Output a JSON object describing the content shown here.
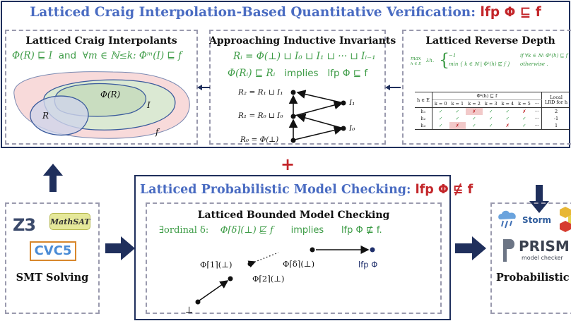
{
  "top_title": {
    "text": "Latticed Craig Interpolation-Based Quantitative Verification:",
    "expr": "lfp Φ ⊑ f"
  },
  "panel_craig": {
    "title": "Latticed Craig Interpolants",
    "formula_left": "Φ(R) ⊑ I",
    "formula_and": "and",
    "formula_right": "∀m ∈ ℕ≤k: Φᵐ(I) ⊑ f",
    "labels": {
      "phi_r": "Φ(R)",
      "i": "I",
      "r": "R",
      "f": "f"
    },
    "colors": {
      "outer": "#f8dada",
      "middle": "#dbe9d3",
      "inner": "#cfd5ea"
    }
  },
  "panel_invariants": {
    "title": "Approaching Inductive Invariants",
    "formula1": "Rᵢ = Φ(⊥) ⊔ I₀ ⊔ I₁ ⊔ ··· ⊔ Iᵢ₋₁",
    "formula2_left": "Φ(Rᵢ) ⊑ Rᵢ",
    "formula2_mid": "implies",
    "formula2_right": "lfp Φ ⊑ f",
    "nodes": {
      "r2": "R₂ = R₁ ⊔ I₁",
      "r1": "R₁ = R₀ ⊔ I₀",
      "r0": "R₀ = Φ(⊥)",
      "i1": "I₁",
      "i0": "I₀"
    }
  },
  "panel_depth": {
    "title": "Latticed Reverse Depth",
    "max_label": "max",
    "max_sub": "h ∈ E",
    "lambda": "λh.",
    "case1": "−1",
    "case1_cond": "if ∀k ∈ ℕ: Φᵏ(h) ⊑ f",
    "case2": "min { k ∈ ℕ | Φᵏ(h) ⋢ f }",
    "case2_cond": "otherwise .",
    "table": {
      "col_h": "h ∈ E",
      "col_phi": "Φᵏ(h) ⊑ f",
      "col_lrd": "Local LRD for h",
      "k_headers": [
        "k = 0",
        "k = 1",
        "k = 2",
        "k = 3",
        "k = 4",
        "k = 5",
        "···"
      ],
      "rows": [
        {
          "h": "h₁",
          "cells": [
            "✓",
            "✓",
            "✗",
            "✓",
            "✓",
            "✗",
            "···"
          ],
          "lrd": "2"
        },
        {
          "h": "h₂",
          "cells": [
            "✓",
            "✓",
            "✓",
            "✓",
            "✓",
            "✓",
            "···"
          ],
          "lrd": "-1"
        },
        {
          "h": "h₃",
          "cells": [
            "✓",
            "✗",
            "✓",
            "✓",
            "✗",
            "✓",
            "···"
          ],
          "lrd": "1"
        }
      ]
    }
  },
  "plus_sign": "+",
  "smt": {
    "label": "SMT Solving",
    "logos": [
      "Z3",
      "MathSAT",
      "CVC5"
    ]
  },
  "lpmc": {
    "title": "Latticed Probabilistic Model Checking:",
    "title_expr": "lfp Φ ⋢ f",
    "sub_title": "Latticed Bounded Model Checking",
    "formula_left": "∃ordinal δ:",
    "formula_mid": "Φ⌈δ⌉(⊥) ⋢ f",
    "formula_implies": "implies",
    "formula_right": "lfp Φ ⋢ f.",
    "labels": {
      "bottom": "⊥",
      "phi1": "Φ⌈1⌉(⊥)",
      "phi2": "Φ⌈2⌉(⊥)",
      "phid": "Φ⌈δ⌉(⊥)",
      "lfp": "lfp Φ"
    }
  },
  "pmc": {
    "label": "Probabilistic M",
    "logos": [
      "Storm",
      "PRISM",
      "model checker"
    ]
  },
  "colors": {
    "navy": "#1f2f5c",
    "title_blue": "#4a6cc2",
    "red": "#c3262a",
    "green": "#3c9b45"
  }
}
